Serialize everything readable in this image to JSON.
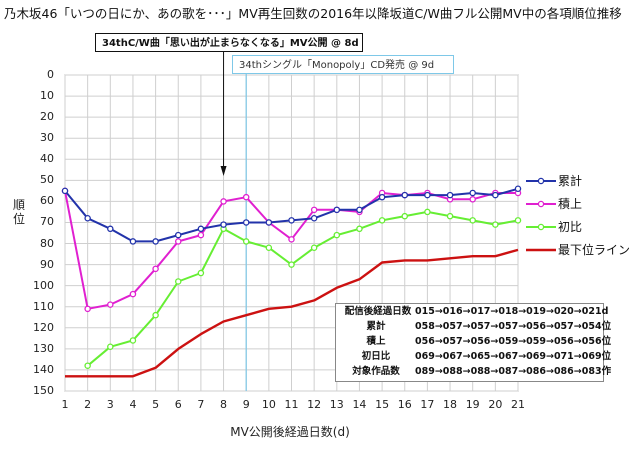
{
  "title": "乃木坂46「いつの日にか、あの歌を･･･」MV再生回数の2016年以降坂道C/W曲フル公開MV中の各項順位推移",
  "annotations": [
    {
      "text": "34thC/W曲「思い出が止まらなくなる」MV公開 @ 8d",
      "x": 8
    },
    {
      "text": "34thシングル「Monopoly」CD発売 @ 9d",
      "x": 9
    }
  ],
  "info_table": [
    {
      "label": "配信後経過日数",
      "value": "015→016→017→018→019→020→021d"
    },
    {
      "label": "累計",
      "value": "058→057→057→057→056→057→054位"
    },
    {
      "label": "積上",
      "value": "056→057→056→059→059→056→056位"
    },
    {
      "label": "初日比",
      "value": "069→067→065→067→069→071→069位"
    },
    {
      "label": "対象作品数",
      "value": "089→088→088→087→086→086→083作"
    }
  ],
  "chart_data": {
    "type": "line",
    "title": "乃木坂46「いつの日にか、あの歌を･･･」MV再生回数の2016年以降坂道C/W曲フル公開MV中の各項順位推移",
    "xlabel": "MV公開後経過日数(d)",
    "ylabel": "順位",
    "x": [
      1,
      2,
      3,
      4,
      5,
      6,
      7,
      8,
      9,
      10,
      11,
      12,
      13,
      14,
      15,
      16,
      17,
      18,
      19,
      20,
      21
    ],
    "xlim": [
      1,
      21
    ],
    "ylim": [
      150,
      0
    ],
    "y_inverted": true,
    "y_ticks": [
      0,
      10,
      20,
      30,
      40,
      50,
      60,
      70,
      80,
      90,
      100,
      110,
      120,
      130,
      140,
      150
    ],
    "grid": true,
    "legend_position": "right",
    "series": [
      {
        "name": "累計",
        "color": "#2233aa",
        "markers": true,
        "values": [
          55,
          68,
          73,
          79,
          79,
          76,
          73,
          71,
          70,
          70,
          69,
          68,
          64,
          64,
          58,
          57,
          57,
          57,
          56,
          57,
          54
        ]
      },
      {
        "name": "積上",
        "color": "#e020d0",
        "markers": true,
        "values": [
          55,
          111,
          109,
          104,
          92,
          79,
          76,
          60,
          58,
          70,
          78,
          64,
          64,
          65,
          56,
          57,
          56,
          59,
          59,
          56,
          56
        ]
      },
      {
        "name": "初比",
        "color": "#66ee33",
        "markers": true,
        "values": [
          null,
          138,
          129,
          126,
          114,
          98,
          94,
          73,
          79,
          82,
          90,
          82,
          76,
          73,
          69,
          67,
          65,
          67,
          69,
          71,
          69
        ]
      },
      {
        "name": "最下位ライン",
        "color": "#cc1111",
        "markers": false,
        "values": [
          143,
          143,
          143,
          143,
          139,
          130,
          123,
          117,
          114,
          111,
          110,
          107,
          101,
          97,
          89,
          88,
          88,
          87,
          86,
          86,
          83
        ]
      }
    ]
  }
}
